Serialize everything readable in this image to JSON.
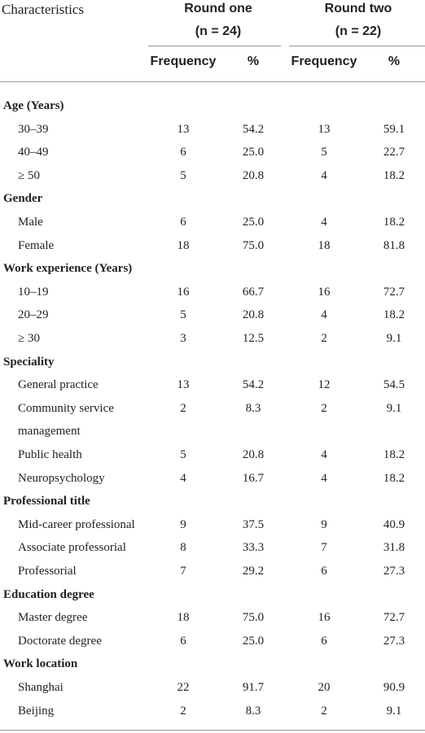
{
  "header": {
    "characteristics": "Characteristics",
    "rounds": [
      {
        "title": "Round one",
        "n": "(n = 24)"
      },
      {
        "title": "Round two",
        "n": "(n = 22)"
      }
    ],
    "columns": [
      "Frequency",
      "%",
      "Frequency",
      "%"
    ]
  },
  "sections": [
    {
      "title": "Age (Years)",
      "rows": [
        {
          "label": "30–39",
          "cells": [
            "13",
            "54.2",
            "13",
            "59.1"
          ]
        },
        {
          "label": "40–49",
          "cells": [
            "6",
            "25.0",
            "5",
            "22.7"
          ]
        },
        {
          "label": "≥ 50",
          "cells": [
            "5",
            "20.8",
            "4",
            "18.2"
          ]
        }
      ]
    },
    {
      "title": "Gender",
      "rows": [
        {
          "label": "Male",
          "cells": [
            "6",
            "25.0",
            "4",
            "18.2"
          ]
        },
        {
          "label": "Female",
          "cells": [
            "18",
            "75.0",
            "18",
            "81.8"
          ]
        }
      ]
    },
    {
      "title": "Work experience (Years)",
      "rows": [
        {
          "label": "10–19",
          "cells": [
            "16",
            "66.7",
            "16",
            "72.7"
          ]
        },
        {
          "label": "20–29",
          "cells": [
            "5",
            "20.8",
            "4",
            "18.2"
          ]
        },
        {
          "label": "≥ 30",
          "cells": [
            "3",
            "12.5",
            "2",
            "9.1"
          ]
        }
      ]
    },
    {
      "title": "Speciality",
      "rows": [
        {
          "label": "General practice",
          "cells": [
            "13",
            "54.2",
            "12",
            "54.5"
          ]
        },
        {
          "label": "Community service management",
          "cells": [
            "2",
            "8.3",
            "2",
            "9.1"
          ]
        },
        {
          "label": "Public health",
          "cells": [
            "5",
            "20.8",
            "4",
            "18.2"
          ]
        },
        {
          "label": "Neuropsychology",
          "cells": [
            "4",
            "16.7",
            "4",
            "18.2"
          ]
        }
      ]
    },
    {
      "title": "Professional title",
      "rows": [
        {
          "label": "Mid-career professional",
          "cells": [
            "9",
            "37.5",
            "9",
            "40.9"
          ]
        },
        {
          "label": "Associate professorial",
          "cells": [
            "8",
            "33.3",
            "7",
            "31.8"
          ]
        },
        {
          "label": "Professorial",
          "cells": [
            "7",
            "29.2",
            "6",
            "27.3"
          ]
        }
      ]
    },
    {
      "title": "Education degree",
      "rows": [
        {
          "label": "Master degree",
          "cells": [
            "18",
            "75.0",
            "16",
            "72.7"
          ]
        },
        {
          "label": "Doctorate degree",
          "cells": [
            "6",
            "25.0",
            "6",
            "27.3"
          ]
        }
      ]
    },
    {
      "title": "Work location",
      "rows": [
        {
          "label": "Shanghai",
          "cells": [
            "22",
            "91.7",
            "20",
            "90.9"
          ]
        },
        {
          "label": "Beijing",
          "cells": [
            "2",
            "8.3",
            "2",
            "9.1"
          ]
        }
      ]
    }
  ]
}
